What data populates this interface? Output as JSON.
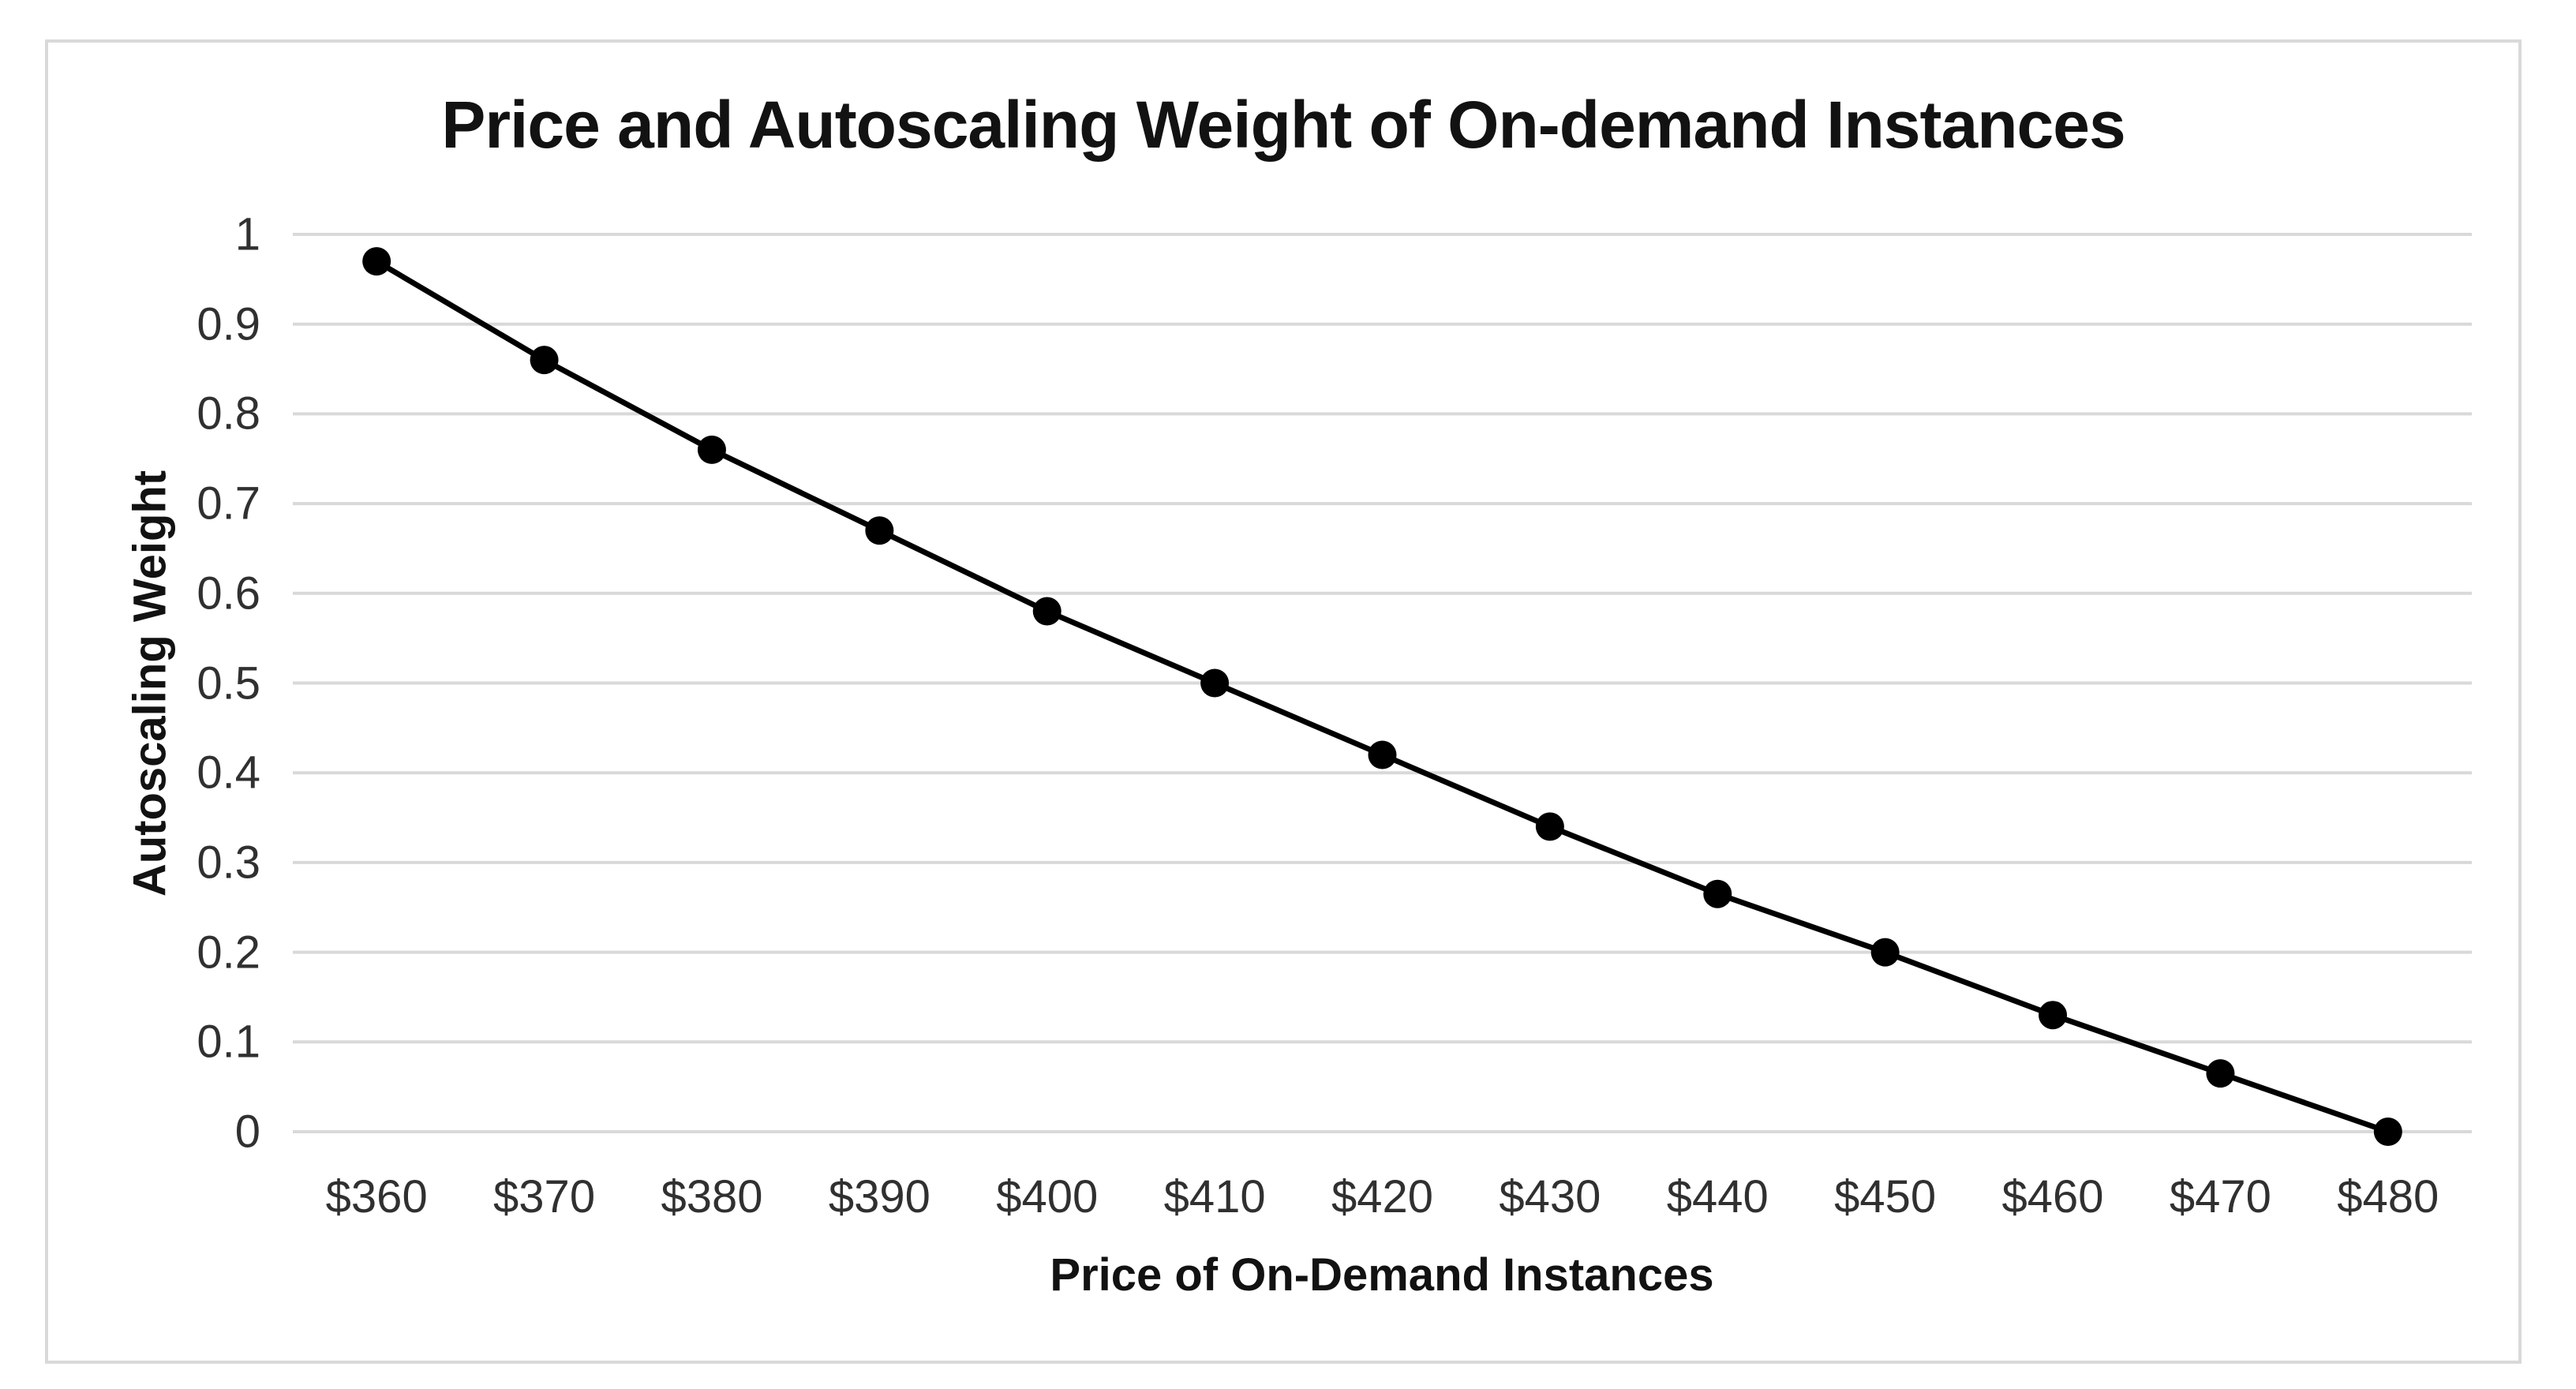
{
  "chart_data": {
    "type": "line",
    "title": "Price and Autoscaling Weight of On-demand Instances",
    "xlabel": "Price of On-Demand Instances",
    "ylabel": "Autoscaling Weight",
    "categories": [
      "$360",
      "$370",
      "$380",
      "$390",
      "$400",
      "$410",
      "$420",
      "$430",
      "$440",
      "$450",
      "$460",
      "$470",
      "$480"
    ],
    "values": [
      0.97,
      0.86,
      0.76,
      0.67,
      0.58,
      0.5,
      0.42,
      0.34,
      0.265,
      0.2,
      0.13,
      0.065,
      0
    ],
    "ylim": [
      0,
      1
    ],
    "y_tick_labels": [
      "1",
      "0.9",
      "0.8",
      "0.7",
      "0.6",
      "0.5",
      "0.4",
      "0.3",
      "0.2",
      "0.1",
      "0"
    ],
    "grid": true,
    "legend": false,
    "marker": "circle",
    "colors": {
      "series_line": "#000000",
      "marker_fill": "#000000",
      "gridline": "#d9d9d9",
      "frame_border": "#d9d9d9",
      "tick_text": "#303030",
      "title_text": "#121212",
      "background": "#ffffff"
    }
  }
}
